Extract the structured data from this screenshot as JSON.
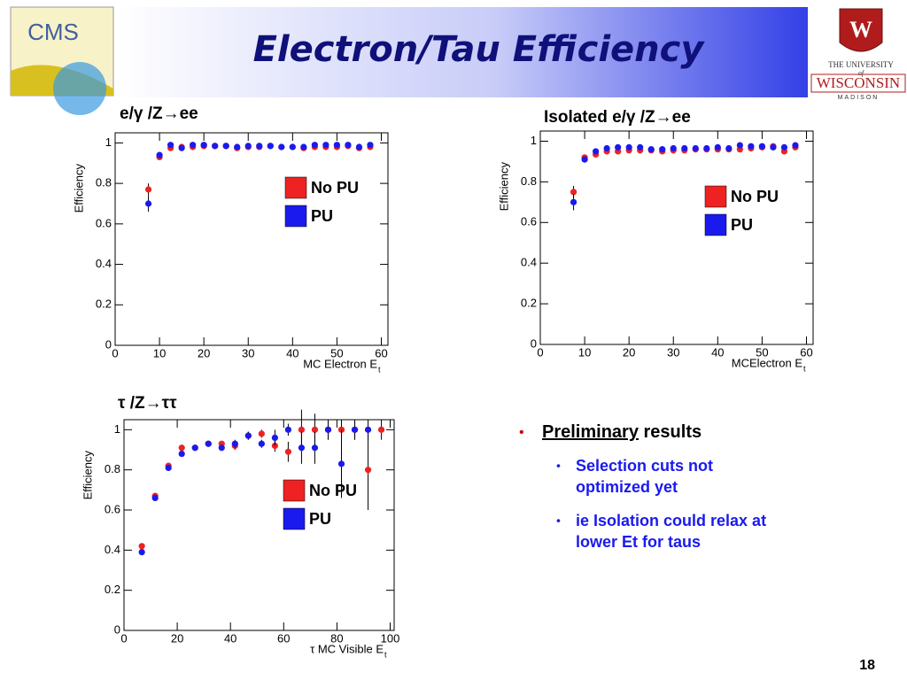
{
  "header": {
    "title": "Electron/Tau Efficiency"
  },
  "logos": {
    "cms": "CMS",
    "university": {
      "line1": "THE UNIVERSITY",
      "of": "of",
      "name": "WISCONSIN",
      "city": "MADISON"
    }
  },
  "chart_data": [
    {
      "type": "scatter",
      "title": "e/γ /Z→ee",
      "xlabel": "MC Electron E",
      "xlabel_subscript": "t",
      "ylabel": "Efficiency",
      "x": [
        7.5,
        10,
        12.5,
        15,
        17.5,
        20,
        22.5,
        25,
        27.5,
        30,
        32.5,
        35,
        37.5,
        40,
        42.5,
        45,
        47.5,
        50,
        52.5,
        55,
        57.5
      ],
      "series": [
        {
          "name": "No PU",
          "color": "#ee2222",
          "values": [
            0.77,
            0.93,
            0.975,
            0.98,
            0.98,
            0.985,
            0.985,
            0.985,
            0.975,
            0.98,
            0.98,
            0.985,
            0.98,
            0.98,
            0.975,
            0.98,
            0.98,
            0.98,
            0.985,
            0.975,
            0.98
          ],
          "errors": [
            0.03,
            0.01,
            0.01,
            0.01,
            0.01,
            0.01,
            0.01,
            0.01,
            0.01,
            0.01,
            0.01,
            0.01,
            0.01,
            0.01,
            0.01,
            0.01,
            0.01,
            0.01,
            0.01,
            0.01,
            0.01
          ]
        },
        {
          "name": "PU",
          "color": "#1a1aee",
          "values": [
            0.7,
            0.94,
            0.99,
            0.975,
            0.99,
            0.99,
            0.985,
            0.985,
            0.98,
            0.985,
            0.985,
            0.985,
            0.98,
            0.98,
            0.98,
            0.99,
            0.99,
            0.99,
            0.99,
            0.98,
            0.99
          ],
          "errors": [
            0.04,
            0.01,
            0.01,
            0.01,
            0.01,
            0.01,
            0.01,
            0.01,
            0.01,
            0.01,
            0.01,
            0.01,
            0.01,
            0.01,
            0.01,
            0.01,
            0.01,
            0.01,
            0.01,
            0.01,
            0.01
          ]
        }
      ],
      "xlim": [
        0,
        61.5
      ],
      "ylim": [
        0,
        1.05
      ],
      "xticks": [
        0,
        10,
        20,
        30,
        40,
        50,
        60
      ],
      "yticks": [
        0,
        0.2,
        0.4,
        0.6,
        0.8,
        1
      ]
    },
    {
      "type": "scatter",
      "title": "Isolated e/γ /Z→ee",
      "xlabel": "MCElectron E",
      "xlabel_subscript": "t",
      "ylabel": "Efficiency",
      "x": [
        7.5,
        10,
        12.5,
        15,
        17.5,
        20,
        22.5,
        25,
        27.5,
        30,
        32.5,
        35,
        37.5,
        40,
        42.5,
        45,
        47.5,
        50,
        52.5,
        55,
        57.5
      ],
      "series": [
        {
          "name": "No PU",
          "color": "#ee2222",
          "values": [
            0.75,
            0.92,
            0.935,
            0.95,
            0.95,
            0.955,
            0.955,
            0.955,
            0.95,
            0.955,
            0.955,
            0.96,
            0.96,
            0.96,
            0.96,
            0.96,
            0.965,
            0.97,
            0.975,
            0.95,
            0.97
          ],
          "errors": [
            0.03,
            0.01,
            0.01,
            0.01,
            0.01,
            0.01,
            0.01,
            0.01,
            0.01,
            0.01,
            0.01,
            0.01,
            0.01,
            0.01,
            0.01,
            0.01,
            0.01,
            0.01,
            0.01,
            0.01,
            0.01
          ]
        },
        {
          "name": "PU",
          "color": "#1a1aee",
          "values": [
            0.7,
            0.91,
            0.95,
            0.965,
            0.97,
            0.97,
            0.97,
            0.96,
            0.96,
            0.965,
            0.965,
            0.965,
            0.965,
            0.97,
            0.965,
            0.98,
            0.975,
            0.975,
            0.97,
            0.97,
            0.98
          ],
          "errors": [
            0.04,
            0.01,
            0.01,
            0.01,
            0.01,
            0.01,
            0.01,
            0.01,
            0.01,
            0.01,
            0.01,
            0.01,
            0.01,
            0.01,
            0.01,
            0.01,
            0.01,
            0.01,
            0.01,
            0.01,
            0.01
          ]
        }
      ],
      "xlim": [
        0,
        61.5
      ],
      "ylim": [
        0,
        1.05
      ],
      "xticks": [
        0,
        10,
        20,
        30,
        40,
        50,
        60
      ],
      "yticks": [
        0,
        0.2,
        0.4,
        0.6,
        0.8,
        1
      ]
    },
    {
      "type": "scatter",
      "title": "τ /Z→ττ",
      "xlabel": "τ MC Visible E",
      "xlabel_subscript": "t",
      "ylabel": "Efficiency",
      "x": [
        6.7,
        11.7,
        16.7,
        21.7,
        26.7,
        31.7,
        36.7,
        41.7,
        46.7,
        51.7,
        56.7,
        61.7,
        66.7,
        71.7,
        76.7,
        81.7,
        86.7,
        91.7,
        96.7
      ],
      "series": [
        {
          "name": "No PU",
          "color": "#ee2222",
          "values": [
            0.42,
            0.67,
            0.82,
            0.91,
            0.91,
            0.93,
            0.93,
            0.92,
            0.97,
            0.98,
            0.92,
            0.89,
            1.0,
            1.0,
            1.0,
            1.0,
            1.0,
            0.8,
            1.0
          ],
          "errors": [
            0.01,
            0.01,
            0.01,
            0.01,
            0.01,
            0.01,
            0.01,
            0.02,
            0.02,
            0.02,
            0.03,
            0.05,
            0.1,
            0.08,
            0.05,
            0.05,
            0.05,
            0.2,
            0.05
          ]
        },
        {
          "name": "PU",
          "color": "#1a1aee",
          "values": [
            0.39,
            0.66,
            0.81,
            0.88,
            0.91,
            0.93,
            0.91,
            0.93,
            0.97,
            0.93,
            0.96,
            1.0,
            0.91,
            0.91,
            1.0,
            0.83,
            1.0,
            1.0,
            null
          ],
          "errors": [
            0.01,
            0.01,
            0.01,
            0.01,
            0.01,
            0.01,
            0.01,
            0.02,
            0.02,
            0.02,
            0.04,
            0.03,
            0.08,
            0.08,
            0.05,
            0.17,
            0.05,
            0.05,
            null
          ]
        }
      ],
      "xlim": [
        0,
        101.5
      ],
      "ylim": [
        0,
        1.05
      ],
      "xticks": [
        0,
        20,
        40,
        60,
        80,
        100
      ],
      "yticks": [
        0,
        0.2,
        0.4,
        0.6,
        0.8,
        1
      ]
    }
  ],
  "bullets": {
    "main": {
      "underlined": "Preliminary",
      "text": "results"
    },
    "sub": [
      [
        "Selection cuts not",
        "optimized yet"
      ],
      [
        "ie Isolation could relax at",
        "lower Et for taus"
      ]
    ]
  },
  "page_number": "18"
}
